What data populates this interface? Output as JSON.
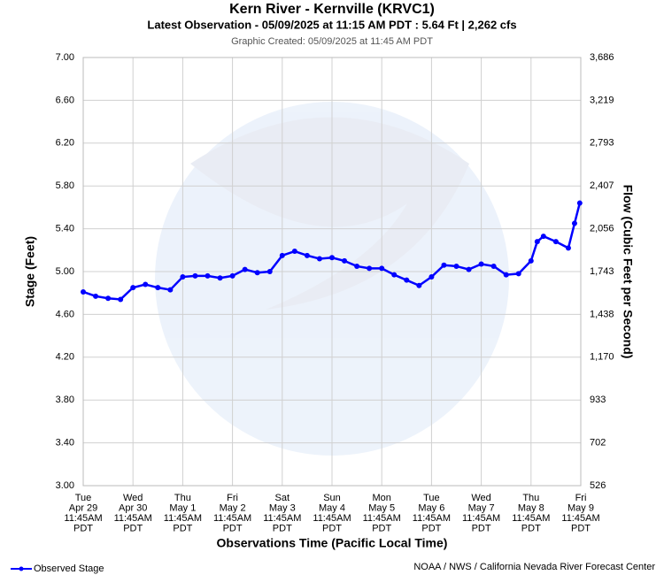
{
  "chart_data": {
    "type": "line",
    "title": "Kern River - Kernville (KRVC1)",
    "subtitle": "Latest Observation - 05/09/2025 at 11:15 AM PDT : 5.64 Ft | 2,262 cfs",
    "created": "Graphic Created: 05/09/2025 at 11:45 AM PDT",
    "ylabel": "Stage (Feet)",
    "y2label": "Flow (Cubic Feet per Second)",
    "xlabel": "Observations Time (Pacific Local Time)",
    "footer": "NOAA / NWS / California Nevada River Forecast Center",
    "grid": true,
    "ylim": [
      3,
      7
    ],
    "yticks": [
      {
        "value": 3,
        "label": "3.00"
      },
      {
        "value": 3.4,
        "label": "3.40"
      },
      {
        "value": 3.8,
        "label": "3.80"
      },
      {
        "value": 4.2,
        "label": "4.20"
      },
      {
        "value": 4.6,
        "label": "4.60"
      },
      {
        "value": 5,
        "label": "5.00"
      },
      {
        "value": 5.4,
        "label": "5.40"
      },
      {
        "value": 5.8,
        "label": "5.80"
      },
      {
        "value": 6.2,
        "label": "6.20"
      },
      {
        "value": 6.6,
        "label": "6.60"
      },
      {
        "value": 7,
        "label": "7.00"
      }
    ],
    "y2ticks": [
      526,
      702,
      933,
      {
        "value": 1170,
        "label": "1,170"
      },
      {
        "value": 1438,
        "label": "1,438"
      },
      {
        "value": 1743,
        "label": "1,743"
      },
      {
        "value": 2056,
        "label": "2,056"
      },
      {
        "value": 2407,
        "label": "2,407"
      },
      {
        "value": 2793,
        "label": "2,793"
      },
      {
        "value": 3219,
        "label": "3,219"
      },
      {
        "value": 3686,
        "label": "3,686"
      }
    ],
    "xlim": [
      "04-29 11:45",
      "05-09 11:45"
    ],
    "xticks": [
      {
        "value": "04-29 11:45",
        "label": [
          "Tue",
          "Apr 29",
          "11:45AM",
          "PDT"
        ]
      },
      {
        "value": "04-30 11:45",
        "label": [
          "Wed",
          "Apr 30",
          "11:45AM",
          "PDT"
        ]
      },
      {
        "value": "05-01 11:45",
        "label": [
          "Thu",
          "May 1",
          "11:45AM",
          "PDT"
        ]
      },
      {
        "value": "05-02 11:45",
        "label": [
          "Fri",
          "May 2",
          "11:45AM",
          "PDT"
        ]
      },
      {
        "value": "05-03 11:45",
        "label": [
          "Sat",
          "May 3",
          "11:45AM",
          "PDT"
        ]
      },
      {
        "value": "05-04 11:45",
        "label": [
          "Sun",
          "May 4",
          "11:45AM",
          "PDT"
        ]
      },
      {
        "value": "05-05 11:45",
        "label": [
          "Mon",
          "May 5",
          "11:45AM",
          "PDT"
        ]
      },
      {
        "value": "05-06 11:45",
        "label": [
          "Tue",
          "May 6",
          "11:45AM",
          "PDT"
        ]
      },
      {
        "value": "05-07 11:45",
        "label": [
          "Wed",
          "May 7",
          "11:45AM",
          "PDT"
        ]
      },
      {
        "value": "05-08 11:45",
        "label": [
          "Thu",
          "May 8",
          "11:45AM",
          "PDT"
        ]
      },
      {
        "value": "05-09 11:45",
        "label": [
          "Fri",
          "May 9",
          "11:45AM",
          "PDT"
        ]
      }
    ],
    "x": [
      "04-29 11:45",
      "04-29 17:45",
      "04-29 23:45",
      "04-30 05:45",
      "04-30 11:45",
      "04-30 17:45",
      "04-30 23:45",
      "05-01 05:45",
      "05-01 11:45",
      "05-01 17:45",
      "05-01 23:45",
      "05-02 05:45",
      "05-02 11:45",
      "05-02 17:45",
      "05-02 23:45",
      "05-03 05:45",
      "05-03 11:45",
      "05-03 17:45",
      "05-03 23:45",
      "05-04 05:45",
      "05-04 11:45",
      "05-04 17:45",
      "05-04 23:45",
      "05-05 05:45",
      "05-05 11:45",
      "05-05 17:45",
      "05-05 23:45",
      "05-06 05:45",
      "05-06 11:45",
      "05-06 17:45",
      "05-06 23:45",
      "05-07 05:45",
      "05-07 11:45",
      "05-07 17:45",
      "05-07 23:45",
      "05-08 05:45",
      "05-08 11:45",
      "05-08 14:45",
      "05-08 17:45",
      "05-08 23:45",
      "05-09 05:45",
      "05-09 08:45",
      "05-09 11:15"
    ],
    "series": [
      {
        "name": "Observed Stage",
        "color": "#0000ff",
        "values": [
          4.81,
          4.77,
          4.75,
          4.74,
          4.85,
          4.88,
          4.85,
          4.83,
          4.95,
          4.96,
          4.96,
          4.94,
          4.96,
          5.02,
          4.99,
          5.0,
          5.15,
          5.19,
          5.15,
          5.12,
          5.13,
          5.1,
          5.05,
          5.03,
          5.03,
          4.97,
          4.92,
          4.87,
          4.95,
          5.06,
          5.05,
          5.02,
          5.07,
          5.05,
          4.97,
          4.98,
          5.1,
          5.28,
          5.33,
          5.28,
          5.22,
          5.45,
          5.64
        ]
      }
    ]
  }
}
